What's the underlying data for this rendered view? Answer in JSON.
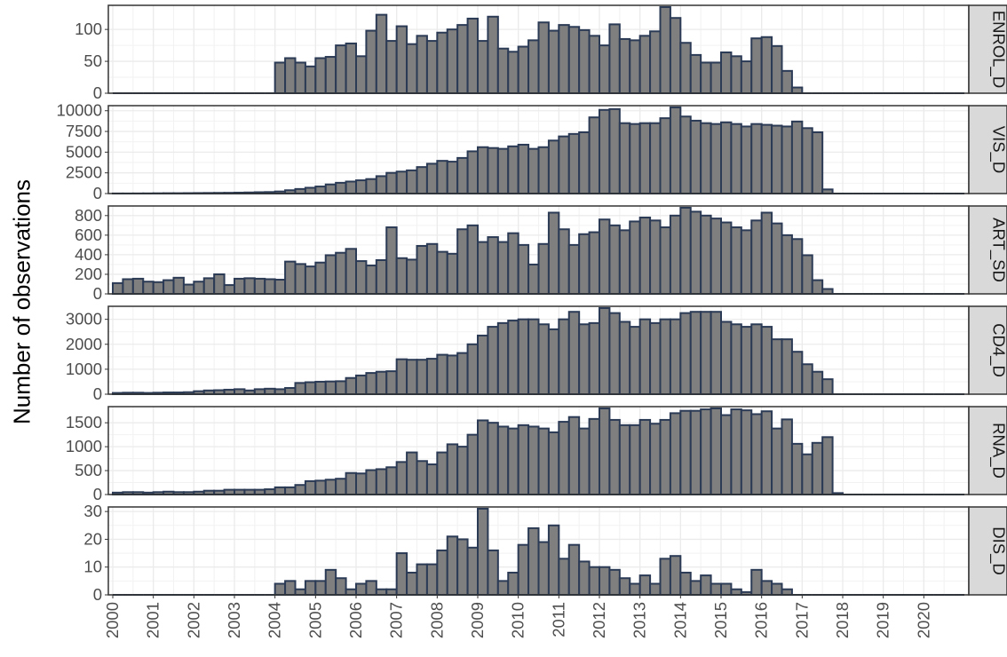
{
  "chart_data": {
    "type": "bar",
    "ylabel": "Number of observations",
    "xlabel": "",
    "facet_layout": "stacked rows, shared x axis, strip labels on right",
    "grid": true,
    "bar_fill": "#7f7f7f",
    "bar_outline": "#2b3a55",
    "strip_fill": "#d9d9d9",
    "bin_width_years": 0.25,
    "xlim": [
      2000,
      2021
    ],
    "x_ticks": [
      2000,
      2001,
      2002,
      2003,
      2004,
      2005,
      2006,
      2007,
      2008,
      2009,
      2010,
      2011,
      2012,
      2013,
      2014,
      2015,
      2016,
      2017,
      2018,
      2019,
      2020
    ],
    "x_tick_labels": [
      "2000",
      "2001",
      "2002",
      "2003",
      "2004",
      "2005",
      "2006",
      "2007",
      "2008",
      "2009",
      "2010",
      "2011",
      "2012",
      "2013",
      "2014",
      "2015",
      "2016",
      "2017",
      "2018",
      "2019",
      "2020"
    ],
    "panels": [
      {
        "name": "ENROL_D",
        "ylim": [
          0,
          135
        ],
        "y_ticks": [
          0,
          50,
          100
        ],
        "y_tick_labels": [
          "0",
          "50",
          "100"
        ],
        "start_year": 2000,
        "values": [
          0,
          0,
          0,
          0,
          0,
          0,
          0,
          0,
          0,
          0,
          0,
          0,
          0,
          0,
          0,
          0,
          48,
          55,
          48,
          42,
          55,
          57,
          75,
          78,
          58,
          98,
          123,
          82,
          105,
          77,
          90,
          82,
          95,
          100,
          107,
          117,
          82,
          120,
          70,
          65,
          73,
          83,
          111,
          98,
          107,
          104,
          99,
          90,
          75,
          108,
          85,
          83,
          90,
          97,
          135,
          118,
          79,
          60,
          48,
          48,
          64,
          58,
          50,
          86,
          88,
          74,
          35,
          9,
          0,
          0,
          0,
          0,
          0,
          0,
          0,
          0,
          0,
          0,
          0,
          0,
          0,
          0,
          0,
          0
        ]
      },
      {
        "name": "VIS_D",
        "ylim": [
          0,
          10400
        ],
        "y_ticks": [
          0,
          2500,
          5000,
          7500,
          10000
        ],
        "y_tick_labels": [
          "0",
          "2500",
          "5000",
          "7500",
          "10000"
        ],
        "start_year": 2000,
        "values": [
          10,
          10,
          15,
          20,
          30,
          40,
          40,
          50,
          60,
          70,
          80,
          90,
          110,
          130,
          160,
          180,
          250,
          400,
          550,
          700,
          850,
          1100,
          1300,
          1450,
          1600,
          1750,
          2100,
          2500,
          2650,
          2800,
          3200,
          3600,
          3950,
          3850,
          4300,
          5100,
          5600,
          5500,
          5400,
          5700,
          5900,
          5400,
          5600,
          6400,
          6900,
          7200,
          7400,
          9200,
          10100,
          10200,
          8500,
          8400,
          8500,
          8500,
          9100,
          10400,
          9300,
          8800,
          8500,
          8400,
          8600,
          8400,
          8100,
          8400,
          8300,
          8200,
          8100,
          8700,
          7900,
          7400,
          500,
          0,
          0,
          0,
          0,
          0,
          0,
          0,
          0,
          0,
          0,
          0,
          0,
          0
        ]
      },
      {
        "name": "ART_SD",
        "ylim": [
          0,
          880
        ],
        "y_ticks": [
          0,
          200,
          400,
          600,
          800
        ],
        "y_tick_labels": [
          "0",
          "200",
          "400",
          "600",
          "800"
        ],
        "start_year": 2000,
        "values": [
          110,
          150,
          155,
          125,
          120,
          140,
          165,
          95,
          125,
          160,
          200,
          90,
          155,
          160,
          155,
          150,
          145,
          330,
          305,
          280,
          320,
          395,
          420,
          460,
          335,
          290,
          345,
          680,
          365,
          350,
          490,
          510,
          430,
          410,
          660,
          700,
          530,
          580,
          530,
          620,
          500,
          300,
          510,
          830,
          660,
          500,
          610,
          630,
          760,
          700,
          650,
          740,
          780,
          750,
          680,
          800,
          880,
          840,
          800,
          770,
          730,
          680,
          650,
          750,
          830,
          720,
          600,
          560,
          395,
          140,
          50,
          0,
          0,
          0,
          0,
          0,
          0,
          0,
          0,
          0,
          0,
          0,
          0,
          0
        ]
      },
      {
        "name": "CD4_D",
        "ylim": [
          0,
          3450
        ],
        "y_ticks": [
          0,
          1000,
          2000,
          3000
        ],
        "y_tick_labels": [
          "0",
          "1000",
          "2000",
          "3000"
        ],
        "start_year": 2000,
        "values": [
          50,
          60,
          60,
          50,
          60,
          70,
          70,
          80,
          120,
          150,
          160,
          180,
          200,
          150,
          200,
          220,
          200,
          250,
          450,
          480,
          500,
          510,
          520,
          650,
          750,
          850,
          900,
          920,
          1400,
          1380,
          1380,
          1420,
          1580,
          1550,
          1650,
          2000,
          2350,
          2700,
          2850,
          2950,
          3000,
          3000,
          2800,
          2600,
          3000,
          3300,
          2800,
          2850,
          3450,
          3250,
          2900,
          2700,
          3000,
          2850,
          3000,
          3000,
          3250,
          3300,
          3300,
          3300,
          2900,
          2800,
          2700,
          2800,
          2700,
          2200,
          2200,
          1700,
          1200,
          900,
          600,
          0,
          0,
          0,
          0,
          0,
          0,
          0,
          0,
          0,
          0,
          0,
          0,
          0
        ]
      },
      {
        "name": "RNA_D",
        "ylim": [
          0,
          1800
        ],
        "y_ticks": [
          0,
          500,
          1000,
          1500
        ],
        "y_tick_labels": [
          "0",
          "500",
          "1000",
          "1500"
        ],
        "start_year": 2000,
        "values": [
          40,
          50,
          50,
          40,
          50,
          60,
          50,
          50,
          60,
          80,
          80,
          100,
          100,
          100,
          100,
          110,
          150,
          150,
          200,
          280,
          290,
          310,
          330,
          450,
          440,
          510,
          530,
          570,
          680,
          880,
          700,
          630,
          880,
          1050,
          1000,
          1250,
          1550,
          1500,
          1420,
          1380,
          1450,
          1420,
          1380,
          1300,
          1520,
          1620,
          1380,
          1580,
          1800,
          1560,
          1450,
          1450,
          1560,
          1480,
          1560,
          1700,
          1750,
          1750,
          1780,
          1800,
          1660,
          1780,
          1760,
          1680,
          1740,
          1380,
          1570,
          1060,
          840,
          1080,
          1200,
          30,
          0,
          0,
          0,
          0,
          0,
          0,
          0,
          0,
          0,
          0,
          0,
          0
        ]
      },
      {
        "name": "DIS_D",
        "ylim": [
          0,
          31
        ],
        "y_ticks": [
          0,
          10,
          20,
          30
        ],
        "y_tick_labels": [
          "0",
          "10",
          "20",
          "30"
        ],
        "start_year": 2000,
        "values": [
          0,
          0,
          0,
          0,
          0,
          0,
          0,
          0,
          0,
          0,
          0,
          0,
          0,
          0,
          0,
          0,
          4,
          5,
          2,
          5,
          5,
          9,
          6,
          2,
          4,
          5,
          2,
          2,
          15,
          8,
          11,
          11,
          16,
          21,
          20,
          17,
          31,
          16,
          5,
          8,
          18,
          24,
          19,
          25,
          13,
          18,
          12,
          10,
          10,
          9,
          6,
          4,
          7,
          4,
          13,
          14,
          8,
          5,
          7,
          4,
          4,
          2,
          1,
          9,
          5,
          4,
          2,
          0,
          0,
          0,
          0,
          0,
          0,
          0,
          0,
          0,
          0,
          0,
          0,
          0,
          0,
          0,
          0,
          0
        ]
      }
    ]
  }
}
